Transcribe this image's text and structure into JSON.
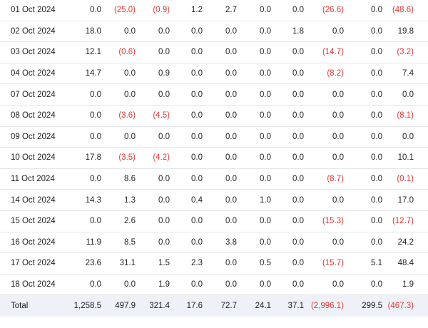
{
  "table": {
    "rows": [
      {
        "date": "01 Oct 2024",
        "values": [
          "0.0",
          "(25.0)",
          "(0.9)",
          "1.2",
          "2.7",
          "0.0",
          "0.0",
          "(26.6)",
          "0.0",
          "(48.6)"
        ]
      },
      {
        "date": "02 Oct 2024",
        "values": [
          "18.0",
          "0.0",
          "0.0",
          "0.0",
          "0.0",
          "0.0",
          "1.8",
          "0.0",
          "0.0",
          "19.8"
        ]
      },
      {
        "date": "03 Oct 2024",
        "values": [
          "12.1",
          "(0.6)",
          "0.0",
          "0.0",
          "0.0",
          "0.0",
          "0.0",
          "(14.7)",
          "0.0",
          "(3.2)"
        ]
      },
      {
        "date": "04 Oct 2024",
        "values": [
          "14.7",
          "0.0",
          "0.9",
          "0.0",
          "0.0",
          "0.0",
          "0.0",
          "(8.2)",
          "0.0",
          "7.4"
        ]
      },
      {
        "date": "07 Oct 2024",
        "values": [
          "0.0",
          "0.0",
          "0.0",
          "0.0",
          "0.0",
          "0.0",
          "0.0",
          "0.0",
          "0.0",
          "0.0"
        ]
      },
      {
        "date": "08 Oct 2024",
        "values": [
          "0.0",
          "(3.6)",
          "(4.5)",
          "0.0",
          "0.0",
          "0.0",
          "0.0",
          "0.0",
          "0.0",
          "(8.1)"
        ]
      },
      {
        "date": "09 Oct 2024",
        "values": [
          "0.0",
          "0.0",
          "0.0",
          "0.0",
          "0.0",
          "0.0",
          "0.0",
          "0.0",
          "0.0",
          "0.0"
        ]
      },
      {
        "date": "10 Oct 2024",
        "values": [
          "17.8",
          "(3.5)",
          "(4.2)",
          "0.0",
          "0.0",
          "0.0",
          "0.0",
          "0.0",
          "0.0",
          "10.1"
        ]
      },
      {
        "date": "11 Oct 2024",
        "values": [
          "0.0",
          "8.6",
          "0.0",
          "0.0",
          "0.0",
          "0.0",
          "0.0",
          "(8.7)",
          "0.0",
          "(0.1)"
        ]
      },
      {
        "date": "14 Oct 2024",
        "values": [
          "14.3",
          "1.3",
          "0.0",
          "0.4",
          "0.0",
          "1.0",
          "0.0",
          "0.0",
          "0.0",
          "17.0"
        ]
      },
      {
        "date": "15 Oct 2024",
        "values": [
          "0.0",
          "2.6",
          "0.0",
          "0.0",
          "0.0",
          "0.0",
          "0.0",
          "(15.3)",
          "0.0",
          "(12.7)"
        ]
      },
      {
        "date": "16 Oct 2024",
        "values": [
          "11.9",
          "8.5",
          "0.0",
          "0.0",
          "3.8",
          "0.0",
          "0.0",
          "0.0",
          "0.0",
          "24.2"
        ]
      },
      {
        "date": "17 Oct 2024",
        "values": [
          "23.6",
          "31.1",
          "1.5",
          "2.3",
          "0.0",
          "0.5",
          "0.0",
          "(15.7)",
          "5.1",
          "48.4"
        ]
      },
      {
        "date": "18 Oct 2024",
        "values": [
          "0.0",
          "0.0",
          "1.9",
          "0.0",
          "0.0",
          "0.0",
          "0.0",
          "0.0",
          "0.0",
          "1.9"
        ]
      }
    ],
    "total": {
      "label": "Total",
      "values": [
        "1,258.5",
        "497.9",
        "321.4",
        "17.6",
        "72.7",
        "24.1",
        "37.1",
        "(2,996.1)",
        "299.5",
        "(467.3)"
      ]
    }
  },
  "colors": {
    "negative": "#e53935",
    "total_bg": "#eef1f8",
    "divider": "#e3e6ea"
  }
}
